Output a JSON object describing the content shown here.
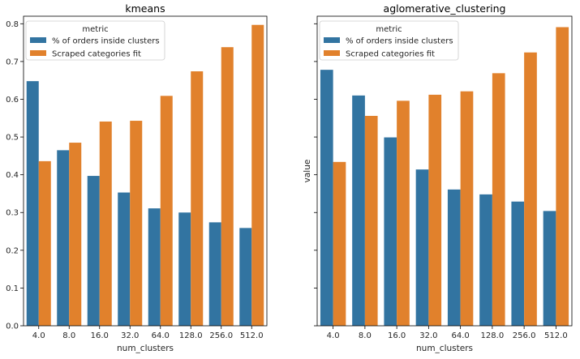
{
  "chart_data": [
    {
      "type": "bar",
      "title": "kmeans",
      "xlabel": "num_clusters",
      "ylabel": "",
      "categories": [
        "4.0",
        "8.0",
        "16.0",
        "32.0",
        "64.0",
        "128.0",
        "256.0",
        "512.0"
      ],
      "series": [
        {
          "name": "% of orders inside clusters",
          "color": "#3274a1",
          "values": [
            0.648,
            0.465,
            0.397,
            0.353,
            0.311,
            0.3,
            0.274,
            0.259
          ]
        },
        {
          "name": "Scraped categories fit",
          "color": "#e1812c",
          "values": [
            0.436,
            0.485,
            0.541,
            0.543,
            0.609,
            0.674,
            0.738,
            0.797
          ]
        }
      ],
      "ylim": [
        0,
        0.82
      ],
      "yticks": [
        "0.0",
        "0.1",
        "0.2",
        "0.3",
        "0.4",
        "0.5",
        "0.6",
        "0.7",
        "0.8"
      ],
      "legend": {
        "title": "metric",
        "placement": "top-left"
      },
      "grid": false
    },
    {
      "type": "bar",
      "title": "aglomerative_clustering",
      "xlabel": "num_clusters",
      "ylabel": "value",
      "categories": [
        "4.0",
        "8.0",
        "16.0",
        "32.0",
        "64.0",
        "128.0",
        "256.0",
        "512.0"
      ],
      "series": [
        {
          "name": "% of orders inside clusters",
          "color": "#3274a1",
          "values": [
            0.678,
            0.61,
            0.499,
            0.414,
            0.361,
            0.348,
            0.329,
            0.304
          ]
        },
        {
          "name": "Scraped categories fit",
          "color": "#e1812c",
          "values": [
            0.434,
            0.556,
            0.596,
            0.612,
            0.621,
            0.669,
            0.724,
            0.791
          ]
        }
      ],
      "ylim": [
        0,
        0.82
      ],
      "yticks": [
        "0.0",
        "0.1",
        "0.2",
        "0.3",
        "0.4",
        "0.5",
        "0.6",
        "0.7",
        "0.8"
      ],
      "legend": {
        "title": "metric",
        "placement": "top-left"
      },
      "grid": false
    }
  ]
}
